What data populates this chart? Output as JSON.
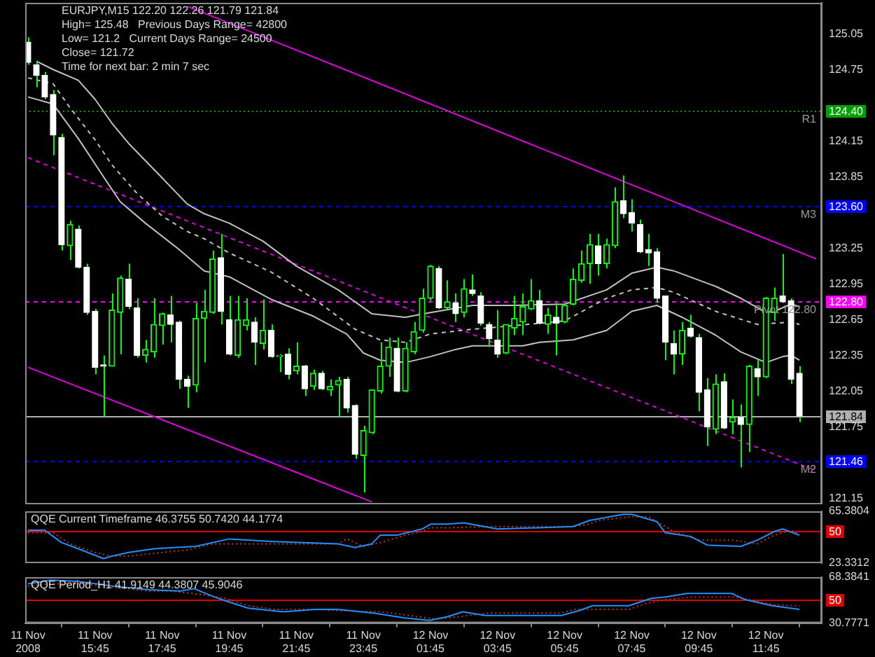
{
  "chart_data": [
    {
      "type": "candlestick",
      "title": "EURJPY,M15 122.20 122.26 121.79 121.84",
      "annotations": [
        "High= 125.48   Previous Days Range= 42800",
        "Low= 121.2   Current Days Range= 24500",
        "Close= 121.72",
        "Time for next bar: 2 min 7 sec",
        {
          "text": "124.40",
          "x": "2008-11-12T13:25",
          "y": 124.4
        },
        {
          "text": "123.60",
          "x": "2008-11-12T13:25",
          "y": 123.6
        },
        {
          "text": "122.80",
          "x": "2008-11-12T13:25",
          "y": 122.8
        },
        {
          "text": "121.84",
          "x": "2008-11-12T13:25",
          "y": 121.84
        },
        {
          "text": "121.46",
          "x": "2008-11-12T13:25",
          "y": 121.46
        }
      ],
      "x": [
        "2008-11-11T13:45",
        "2008-11-11T14:00",
        "2008-11-11T14:15",
        "2008-11-11T14:30",
        "2008-11-11T14:45",
        "2008-11-11T15:00",
        "2008-11-11T15:15",
        "2008-11-11T15:30",
        "2008-11-11T15:45",
        "2008-11-11T16:00",
        "2008-11-11T16:15",
        "2008-11-11T16:30",
        "2008-11-11T16:45",
        "2008-11-11T17:00",
        "2008-11-11T17:15",
        "2008-11-11T17:30",
        "2008-11-11T17:45",
        "2008-11-11T18:00",
        "2008-11-11T18:15",
        "2008-11-11T18:30",
        "2008-11-11T18:45",
        "2008-11-11T19:00",
        "2008-11-11T19:15",
        "2008-11-11T19:30",
        "2008-11-11T19:45",
        "2008-11-11T20:00",
        "2008-11-11T20:15",
        "2008-11-11T20:30",
        "2008-11-11T20:45",
        "2008-11-11T21:00",
        "2008-11-11T21:15",
        "2008-11-11T21:30",
        "2008-11-11T21:45",
        "2008-11-11T22:00",
        "2008-11-11T22:15",
        "2008-11-11T22:30",
        "2008-11-11T22:45",
        "2008-11-11T23:00",
        "2008-11-11T23:15",
        "2008-11-11T23:30",
        "2008-11-11T23:45",
        "2008-11-12T00:00",
        "2008-11-12T00:15",
        "2008-11-12T00:30",
        "2008-11-12T00:45",
        "2008-11-12T01:00",
        "2008-11-12T01:15",
        "2008-11-12T01:30",
        "2008-11-12T01:45",
        "2008-11-12T02:00",
        "2008-11-12T02:15",
        "2008-11-12T02:30",
        "2008-11-12T02:45",
        "2008-11-12T03:00",
        "2008-11-12T03:15",
        "2008-11-12T03:30",
        "2008-11-12T03:45",
        "2008-11-12T04:00",
        "2008-11-12T04:15",
        "2008-11-12T04:30",
        "2008-11-12T04:45",
        "2008-11-12T05:00",
        "2008-11-12T05:15",
        "2008-11-12T05:30",
        "2008-11-12T05:45",
        "2008-11-12T06:00",
        "2008-11-12T06:15",
        "2008-11-12T06:30",
        "2008-11-12T06:45",
        "2008-11-12T07:00",
        "2008-11-12T07:15",
        "2008-11-12T07:30",
        "2008-11-12T07:45",
        "2008-11-12T08:00",
        "2008-11-12T08:15",
        "2008-11-12T08:30",
        "2008-11-12T08:45",
        "2008-11-12T09:00",
        "2008-11-12T09:15",
        "2008-11-12T09:30",
        "2008-11-12T09:45",
        "2008-11-12T10:00",
        "2008-11-12T10:15",
        "2008-11-12T10:30",
        "2008-11-12T10:45",
        "2008-11-12T11:00",
        "2008-11-12T11:15",
        "2008-11-12T11:30",
        "2008-11-12T11:45",
        "2008-11-12T12:00",
        "2008-11-12T12:15",
        "2008-11-12T12:30",
        "2008-11-12T12:45"
      ],
      "ohlc": [
        [
          124.98,
          125.02,
          124.79,
          124.81
        ],
        [
          124.79,
          124.82,
          124.6,
          124.7
        ],
        [
          124.7,
          124.73,
          124.5,
          124.52
        ],
        [
          124.54,
          124.58,
          124.03,
          124.2
        ],
        [
          124.18,
          124.21,
          123.23,
          123.28
        ],
        [
          123.27,
          123.48,
          123.15,
          123.45
        ],
        [
          123.41,
          123.44,
          123.08,
          123.09
        ],
        [
          123.09,
          123.12,
          122.69,
          122.71
        ],
        [
          122.72,
          122.74,
          122.19,
          122.25
        ],
        [
          122.27,
          122.35,
          121.83,
          122.26
        ],
        [
          122.26,
          122.87,
          122.26,
          122.73
        ],
        [
          122.71,
          123.02,
          122.36,
          123
        ],
        [
          122.99,
          123.12,
          122.74,
          122.76
        ],
        [
          122.75,
          122.83,
          122.33,
          122.35
        ],
        [
          122.35,
          122.48,
          122.29,
          122.4
        ],
        [
          122.38,
          122.83,
          122.33,
          122.61
        ],
        [
          122.6,
          122.71,
          122.44,
          122.7
        ],
        [
          122.69,
          122.85,
          122.46,
          122.61
        ],
        [
          122.63,
          122.64,
          122.07,
          122.15
        ],
        [
          122.15,
          122.18,
          121.91,
          122.09
        ],
        [
          122.1,
          122.79,
          122.04,
          122.66
        ],
        [
          122.66,
          122.9,
          122.29,
          122.72
        ],
        [
          122.71,
          123.23,
          122.7,
          123.16
        ],
        [
          123.17,
          123.37,
          122.61,
          122.72
        ],
        [
          122.65,
          122.85,
          122.35,
          122.36
        ],
        [
          122.35,
          122.85,
          122.33,
          122.65
        ],
        [
          122.6,
          122.83,
          122.56,
          122.65
        ],
        [
          122.63,
          122.67,
          122.27,
          122.46
        ],
        [
          122.45,
          122.82,
          122.4,
          122.56
        ],
        [
          122.56,
          122.61,
          122.33,
          122.34
        ],
        [
          122.34,
          122.36,
          122.21,
          122.35
        ],
        [
          122.36,
          122.41,
          122.15,
          122.19
        ],
        [
          122.22,
          122.46,
          122.19,
          122.26
        ],
        [
          122.26,
          122.27,
          122.01,
          122.07
        ],
        [
          122.09,
          122.23,
          122.06,
          122.2
        ],
        [
          122.2,
          122.22,
          122.06,
          122.07
        ],
        [
          122.06,
          122.15,
          122.01,
          122.09
        ],
        [
          122.1,
          122.17,
          121.83,
          122.14
        ],
        [
          122.15,
          122.17,
          121.87,
          121.91
        ],
        [
          121.93,
          121.94,
          121.48,
          121.52
        ],
        [
          121.51,
          121.76,
          121.2,
          121.72
        ],
        [
          121.7,
          122.06,
          121.69,
          122.06
        ],
        [
          122.05,
          122.46,
          122.03,
          122.26
        ],
        [
          122.26,
          122.5,
          122.17,
          122.42
        ],
        [
          122.41,
          122.5,
          122.04,
          122.05
        ],
        [
          122.05,
          122.46,
          122.04,
          122.41
        ],
        [
          122.38,
          122.63,
          122.36,
          122.55
        ],
        [
          122.56,
          122.91,
          122.54,
          122.83
        ],
        [
          122.83,
          123.11,
          122.81,
          123.1
        ],
        [
          123.08,
          123.1,
          122.74,
          122.75
        ],
        [
          122.75,
          122.98,
          122.74,
          122.8
        ],
        [
          122.79,
          122.87,
          122.63,
          122.7
        ],
        [
          122.71,
          122.99,
          122.67,
          122.91
        ],
        [
          122.9,
          123.03,
          122.85,
          122.87
        ],
        [
          122.85,
          122.88,
          122.6,
          122.62
        ],
        [
          122.61,
          122.63,
          122.42,
          122.49
        ],
        [
          122.48,
          122.73,
          122.33,
          122.36
        ],
        [
          122.37,
          122.61,
          122.36,
          122.61
        ],
        [
          122.58,
          122.85,
          122.52,
          122.66
        ],
        [
          122.63,
          122.87,
          122.52,
          122.76
        ],
        [
          122.74,
          122.99,
          122.73,
          122.81
        ],
        [
          122.81,
          122.9,
          122.61,
          122.62
        ],
        [
          122.61,
          122.75,
          122.53,
          122.69
        ],
        [
          122.67,
          122.79,
          122.35,
          122.62
        ],
        [
          122.63,
          122.78,
          122.62,
          122.77
        ],
        [
          122.78,
          123.08,
          122.77,
          122.99
        ],
        [
          122.98,
          123.23,
          122.96,
          123.12
        ],
        [
          123.12,
          123.37,
          122.95,
          123.28
        ],
        [
          123.27,
          123.37,
          123.02,
          123.12
        ],
        [
          123.12,
          123.33,
          123.08,
          123.28
        ],
        [
          123.27,
          123.76,
          123.25,
          123.64
        ],
        [
          123.65,
          123.86,
          123.5,
          123.54
        ],
        [
          123.55,
          123.66,
          123.39,
          123.46
        ],
        [
          123.45,
          123.49,
          123.21,
          123.22
        ],
        [
          123.24,
          123.37,
          123.1,
          123.21
        ],
        [
          123.22,
          123.25,
          122.79,
          122.83
        ],
        [
          122.85,
          122.85,
          122.31,
          122.46
        ],
        [
          122.45,
          122.56,
          122.19,
          122.36
        ],
        [
          122.36,
          122.63,
          122.27,
          122.56
        ],
        [
          122.58,
          122.69,
          122.5,
          122.51
        ],
        [
          122.5,
          122.53,
          121.88,
          122.04
        ],
        [
          122.06,
          122.16,
          121.59,
          121.75
        ],
        [
          121.73,
          122.19,
          121.69,
          122.11
        ],
        [
          122.13,
          122.2,
          121.73,
          121.74
        ],
        [
          121.79,
          121.98,
          121.69,
          121.83
        ],
        [
          121.83,
          121.94,
          121.41,
          121.77
        ],
        [
          121.77,
          122.27,
          121.54,
          122.26
        ],
        [
          122.24,
          122.31,
          122.01,
          122.17
        ],
        [
          122.17,
          122.84,
          122.16,
          122.83
        ],
        [
          122.71,
          122.92,
          122.64,
          122.83
        ],
        [
          122.85,
          123.2,
          122.79,
          122.8
        ],
        [
          122.81,
          122.83,
          122.11,
          122.15
        ],
        [
          122.2,
          122.26,
          121.79,
          121.84
        ]
      ],
      "color": "#00ff00",
      "colors": [
        "#ffffff",
        "#ffffff",
        "#ffffff",
        "#ffffff",
        "#ffffff",
        "#00ff00",
        "#ffffff",
        "#ffffff",
        "#ffffff",
        "#ffffff",
        "#00ff00",
        "#00ff00",
        "#ffffff",
        "#ffffff",
        "#00ff00",
        "#00ff00",
        "#00ff00",
        "#ffffff",
        "#ffffff",
        "#ffffff",
        "#00ff00",
        "#00ff00",
        "#00ff00",
        "#ffffff",
        "#ffffff",
        "#00ff00",
        "#00ff00",
        "#ffffff",
        "#00ff00",
        "#ffffff",
        "#00ff00",
        "#ffffff",
        "#00ff00",
        "#ffffff",
        "#00ff00",
        "#ffffff",
        "#00ff00",
        "#00ff00",
        "#ffffff",
        "#ffffff",
        "#00ff00",
        "#00ff00",
        "#00ff00",
        "#00ff00",
        "#ffffff",
        "#00ff00",
        "#00ff00",
        "#00ff00",
        "#00ff00",
        "#ffffff",
        "#00ff00",
        "#ffffff",
        "#00ff00",
        "#ffffff",
        "#ffffff",
        "#ffffff",
        "#ffffff",
        "#00ff00",
        "#00ff00",
        "#00ff00",
        "#00ff00",
        "#ffffff",
        "#00ff00",
        "#ffffff",
        "#00ff00",
        "#00ff00",
        "#00ff00",
        "#00ff00",
        "#ffffff",
        "#00ff00",
        "#00ff00",
        "#ffffff",
        "#ffffff",
        "#ffffff",
        "#ffffff",
        "#ffffff",
        "#ffffff",
        "#ffffff",
        "#00ff00",
        "#ffffff",
        "#ffffff",
        "#ffffff",
        "#00ff00",
        "#ffffff",
        "#00ff00",
        "#ffffff",
        "#00ff00",
        "#ffffff",
        "#00ff00",
        "#00ff00",
        "#ffffff",
        "#ffffff",
        "#ffffff"
      ],
      "series": [
        {
          "type": "line",
          "color": "#c0c0c0",
          "x": [
            "2008-11-11T14:00",
            "2008-11-11T14:30",
            "2008-11-11T15:15",
            "2008-11-11T15:45",
            "2008-11-11T16:15",
            "2008-11-11T16:45",
            "2008-11-11T17:45",
            "2008-11-11T18:30",
            "2008-11-11T19:00",
            "2008-11-11T19:45",
            "2008-11-11T20:45",
            "2008-11-11T21:45",
            "2008-11-11T23:00",
            "2008-11-12T00:00",
            "2008-11-12T01:00",
            "2008-11-12T01:45",
            "2008-11-12T03:00",
            "2008-11-12T04:15",
            "2008-11-12T05:45",
            "2008-11-12T07:00",
            "2008-11-12T07:45",
            "2008-11-12T08:30",
            "2008-11-12T09:00",
            "2008-11-12T10:15",
            "2008-11-12T11:00",
            "2008-11-12T11:45",
            "2008-11-12T12:00",
            "2008-11-12T12:30",
            "2008-11-12T12:45"
          ],
          "values": [
            124.82,
            124.75,
            124.66,
            124.5,
            124.3,
            124.13,
            123.84,
            123.62,
            123.54,
            123.46,
            123.31,
            123.1,
            122.9,
            122.7,
            122.67,
            122.71,
            122.77,
            122.77,
            122.78,
            122.9,
            123.04,
            123.09,
            123.06,
            122.93,
            122.83,
            122.71,
            122.72,
            122.78,
            122.76
          ]
        },
        {
          "type": "line",
          "color": "#c0c0c0",
          "line_style": "dashed",
          "x": [
            "2008-11-11T13:45",
            "2008-11-11T14:30",
            "2008-11-11T15:00",
            "2008-11-11T15:45",
            "2008-11-11T16:15",
            "2008-11-11T17:00",
            "2008-11-11T17:45",
            "2008-11-11T18:30",
            "2008-11-11T19:00",
            "2008-11-11T19:45",
            "2008-11-11T21:00",
            "2008-11-11T22:15",
            "2008-11-11T23:30",
            "2008-11-12T00:15",
            "2008-11-12T01:00",
            "2008-11-12T01:45",
            "2008-11-12T03:00",
            "2008-11-12T04:15",
            "2008-11-12T05:45",
            "2008-11-12T07:00",
            "2008-11-12T07:45",
            "2008-11-12T08:30",
            "2008-11-12T09:00",
            "2008-11-12T10:15",
            "2008-11-12T11:30",
            "2008-11-12T12:30",
            "2008-11-12T12:45"
          ],
          "values": [
            124.68,
            124.63,
            124.43,
            124.16,
            123.95,
            123.71,
            123.52,
            123.39,
            123.33,
            123.21,
            123.05,
            122.83,
            122.57,
            122.48,
            122.46,
            122.53,
            122.57,
            122.6,
            122.64,
            122.83,
            122.9,
            122.92,
            122.88,
            122.72,
            122.61,
            122.63,
            122.61
          ]
        },
        {
          "type": "line",
          "color": "#c0c0c0",
          "x": [
            "2008-11-11T13:45",
            "2008-11-11T14:30",
            "2008-11-11T15:15",
            "2008-11-11T16:00",
            "2008-11-11T16:30",
            "2008-11-11T17:15",
            "2008-11-11T18:15",
            "2008-11-11T19:00",
            "2008-11-11T19:45",
            "2008-11-11T21:00",
            "2008-11-11T22:15",
            "2008-11-11T23:15",
            "2008-11-11T23:45",
            "2008-11-12T00:15",
            "2008-11-12T01:00",
            "2008-11-12T01:45",
            "2008-11-12T02:30",
            "2008-11-12T03:00",
            "2008-11-12T04:30",
            "2008-11-12T05:00",
            "2008-11-12T06:00",
            "2008-11-12T07:00",
            "2008-11-12T07:45",
            "2008-11-12T08:30",
            "2008-11-12T09:15",
            "2008-11-12T10:15",
            "2008-11-12T11:00",
            "2008-11-12T11:45",
            "2008-11-12T12:15",
            "2008-11-12T12:30",
            "2008-11-12T12:45"
          ],
          "values": [
            124.52,
            124.46,
            124.17,
            123.85,
            123.64,
            123.46,
            123.24,
            123.06,
            123.01,
            122.82,
            122.68,
            122.53,
            122.37,
            122.31,
            122.29,
            122.34,
            122.4,
            122.43,
            122.43,
            122.46,
            122.48,
            122.56,
            122.72,
            122.77,
            122.67,
            122.52,
            122.38,
            122.29,
            122.34,
            122.35,
            122.31
          ]
        },
        {
          "type": "line",
          "color": "#dd00dd",
          "x": [
            "2008-11-11T18:30",
            "2008-11-12T13:15"
          ],
          "values": [
            125.28,
            123.16
          ]
        },
        {
          "type": "line",
          "color": "#dd00dd",
          "line_style": "dashed",
          "x": [
            "2008-11-11T13:45",
            "2008-11-12T13:15"
          ],
          "values": [
            124.01,
            121.38
          ]
        },
        {
          "type": "line",
          "color": "#dd00dd",
          "x": [
            "2008-11-11T13:45",
            "2008-11-12T00:00"
          ],
          "values": [
            122.25,
            121.12
          ]
        }
      ],
      "xlim": [
        "2008-11-11T13:40",
        "2008-11-12T13:25"
      ],
      "ylim": [
        121.1,
        125.31
      ],
      "yticks": [
        121.15,
        121.75,
        122.05,
        122.35,
        122.65,
        122.95,
        123.25,
        123.85,
        124.15,
        124.75,
        125.05
      ],
      "ref_lines": [
        {
          "axis": "y",
          "value": 124.4,
          "label": "R1",
          "color": "#00a000",
          "line_style": "dotted"
        },
        {
          "axis": "y",
          "value": 123.6,
          "label": "M3",
          "color": "#0000ff",
          "line_style": "dashed"
        },
        {
          "axis": "y",
          "value": 122.8,
          "label": "Pivot 122.80",
          "color": "#ff00ff",
          "line_style": "dashed"
        },
        {
          "axis": "y",
          "value": 121.84,
          "color": "#b0b0b0",
          "line_style": "solid"
        },
        {
          "axis": "y",
          "value": 121.46,
          "label": "M2",
          "color": "#0000ff",
          "line_style": "dashed"
        }
      ],
      "tick_labels": "y"
    },
    {
      "type": "line",
      "title": "QQE Current Timeframe 46.3755 50.7420 44.1774",
      "annotations": [
        {
          "text": "50",
          "x": "2008-11-12T13:25",
          "y": 50
        }
      ],
      "series": [
        {
          "color": "#1e90ff",
          "x": [
            "2008-11-11T13:45",
            "2008-11-11T14:15",
            "2008-11-11T14:45",
            "2008-11-11T15:15",
            "2008-11-11T16:00",
            "2008-11-11T16:15",
            "2008-11-11T16:45",
            "2008-11-11T17:30",
            "2008-11-11T18:45",
            "2008-11-11T19:45",
            "2008-11-11T21:00",
            "2008-11-11T23:00",
            "2008-11-11T23:30",
            "2008-11-12T00:00",
            "2008-11-12T00:15",
            "2008-11-12T00:45",
            "2008-11-12T01:30",
            "2008-11-12T01:45",
            "2008-11-12T02:15",
            "2008-11-12T02:45",
            "2008-11-12T03:45",
            "2008-11-12T06:00",
            "2008-11-12T06:30",
            "2008-11-12T07:30",
            "2008-11-12T07:45",
            "2008-11-12T08:30",
            "2008-11-12T08:45",
            "2008-11-12T09:30",
            "2008-11-12T10:00",
            "2008-11-12T11:00",
            "2008-11-12T11:30",
            "2008-11-12T12:00",
            "2008-11-12T12:15",
            "2008-11-12T12:45"
          ],
          "values": [
            50,
            50,
            40,
            35,
            27,
            29,
            32,
            35,
            37,
            43,
            41,
            39,
            36,
            39,
            46,
            46,
            51,
            55,
            55,
            56,
            51,
            53,
            58,
            63,
            63,
            57,
            48,
            45,
            38,
            37,
            42,
            49,
            51,
            46
          ]
        },
        {
          "color": "#cc3300",
          "line_style": "dotted",
          "x": [
            "2008-11-11T13:45",
            "2008-11-11T14:30",
            "2008-11-11T15:00",
            "2008-11-11T15:45",
            "2008-11-11T16:15",
            "2008-11-11T16:45",
            "2008-11-11T17:45",
            "2008-11-11T18:30",
            "2008-11-11T19:15",
            "2008-11-11T20:15",
            "2008-11-11T23:00",
            "2008-11-11T23:15",
            "2008-11-11T23:45",
            "2008-11-12T00:15",
            "2008-11-12T01:00",
            "2008-11-12T01:30",
            "2008-11-12T01:45",
            "2008-11-12T02:15",
            "2008-11-12T03:30",
            "2008-11-12T06:00",
            "2008-11-12T06:30",
            "2008-11-12T06:45",
            "2008-11-12T07:45",
            "2008-11-12T08:15",
            "2008-11-12T09:00",
            "2008-11-12T09:45",
            "2008-11-12T10:45",
            "2008-11-12T11:30",
            "2008-11-12T12:00",
            "2008-11-12T12:30",
            "2008-11-12T12:45"
          ],
          "values": [
            48,
            48,
            39,
            32,
            29,
            29,
            32,
            34,
            39,
            39,
            39,
            43,
            37,
            40,
            46,
            49,
            52,
            52,
            53,
            53,
            55,
            58,
            61,
            61,
            49,
            42,
            42,
            39,
            46,
            50,
            47
          ]
        }
      ],
      "xlim": [
        "2008-11-11T13:40",
        "2008-11-12T13:25"
      ],
      "ylim": [
        23.3312,
        65.3804
      ],
      "yticks": [
        23.3312,
        65.3804
      ],
      "ref_lines": [
        {
          "axis": "y",
          "value": 50,
          "color": "#e00000"
        }
      ],
      "tick_labels": "y"
    },
    {
      "type": "line",
      "title": "QQE Period_H1 41.9149 44.3807 45.9046",
      "annotations": [
        {
          "text": "50",
          "x": "2008-11-12T13:25",
          "y": 50
        }
      ],
      "series": [
        {
          "color": "#1e90ff",
          "x": [
            "2008-11-11T13:45",
            "2008-11-11T14:26",
            "2008-11-11T15:14",
            "2008-11-11T16:18",
            "2008-11-11T17:22",
            "2008-11-11T18:18",
            "2008-11-11T18:42",
            "2008-11-11T19:14",
            "2008-11-11T19:38",
            "2008-11-11T20:19",
            "2008-11-11T21:22",
            "2008-11-11T22:19",
            "2008-11-11T22:59",
            "2008-11-12T00:03",
            "2008-11-12T00:59",
            "2008-11-12T01:43",
            "2008-11-12T02:15",
            "2008-11-12T02:43",
            "2008-11-12T03:23",
            "2008-11-12T05:39",
            "2008-11-12T06:11",
            "2008-11-12T06:35",
            "2008-11-12T07:40",
            "2008-11-12T08:20",
            "2008-11-12T08:44",
            "2008-11-12T09:24",
            "2008-11-12T10:44",
            "2008-11-12T11:08",
            "2008-11-12T11:56",
            "2008-11-12T12:45"
          ],
          "values": [
            63,
            66,
            65,
            61,
            58,
            57,
            59,
            53,
            49,
            43,
            40,
            42,
            42,
            39,
            35,
            33,
            36,
            40,
            37,
            37,
            41,
            45,
            45,
            51,
            52,
            55,
            55,
            50,
            45,
            42
          ]
        },
        {
          "color": "#cc3300",
          "line_style": "dotted",
          "x": [
            "2008-11-11T13:45",
            "2008-11-11T14:26",
            "2008-11-11T15:22",
            "2008-11-11T16:18",
            "2008-11-11T17:22",
            "2008-11-11T18:02",
            "2008-11-11T18:58",
            "2008-11-11T19:38",
            "2008-11-11T20:19",
            "2008-11-11T21:07",
            "2008-11-11T22:11",
            "2008-11-11T22:59",
            "2008-11-12T00:19",
            "2008-11-12T01:23",
            "2008-11-12T01:55",
            "2008-11-12T02:15",
            "2008-11-12T02:35",
            "2008-11-12T03:31",
            "2008-11-12T05:39",
            "2008-11-12T06:03",
            "2008-11-12T07:40",
            "2008-11-12T08:11",
            "2008-11-12T08:44",
            "2008-11-12T09:32",
            "2008-11-12T10:52",
            "2008-11-12T11:24",
            "2008-11-12T11:56",
            "2008-11-12T12:36",
            "2008-11-12T12:45"
          ],
          "values": [
            61,
            63,
            63,
            60,
            57,
            57,
            54,
            51,
            45,
            42,
            42,
            41,
            40,
            36,
            34,
            35,
            36,
            39,
            39,
            42,
            42,
            47,
            50,
            52,
            52,
            49,
            46,
            45,
            45
          ]
        }
      ],
      "xlim": [
        "2008-11-11T13:40",
        "2008-11-12T13:25"
      ],
      "xticks": [
        {
          "value": "2008-11-11T13:45",
          "label": "11 Nov 2008"
        },
        {
          "value": "2008-11-11T15:45",
          "label": "11 Nov 15:45"
        },
        {
          "value": "2008-11-11T17:45",
          "label": "11 Nov 17:45"
        },
        {
          "value": "2008-11-11T19:45",
          "label": "11 Nov 19:45"
        },
        {
          "value": "2008-11-11T21:45",
          "label": "11 Nov 21:45"
        },
        {
          "value": "2008-11-11T23:45",
          "label": "11 Nov 23:45"
        },
        {
          "value": "2008-11-12T01:45",
          "label": "12 Nov 01:45"
        },
        {
          "value": "2008-11-12T03:45",
          "label": "12 Nov 03:45"
        },
        {
          "value": "2008-11-12T05:45",
          "label": "12 Nov 05:45"
        },
        {
          "value": "2008-11-12T07:45",
          "label": "12 Nov 07:45"
        },
        {
          "value": "2008-11-12T09:45",
          "label": "12 Nov 09:45"
        },
        {
          "value": "2008-11-12T11:45",
          "label": "12 Nov 11:45"
        }
      ],
      "ylim": [
        30.7771,
        68.3841
      ],
      "yticks": [
        30.7771,
        68.3841
      ],
      "ref_lines": [
        {
          "axis": "y",
          "value": 50,
          "color": "#e00000"
        }
      ]
    }
  ]
}
